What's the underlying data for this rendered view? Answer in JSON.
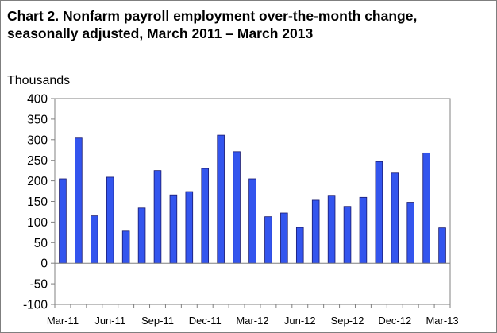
{
  "chart_data": {
    "type": "bar",
    "title": "Chart 2. Nonfarm payroll employment over-the-month change, seasonally adjusted, March 2011 – March  2013",
    "ylabel": "Thousands",
    "xlabel": "",
    "ylim": [
      -100,
      400
    ],
    "yticks": [
      400,
      350,
      300,
      250,
      200,
      150,
      100,
      50,
      0,
      -50,
      -100
    ],
    "ytick_labels": [
      "400",
      "350",
      "300",
      "250",
      "200",
      "150",
      "100",
      "50",
      "0",
      "-50",
      "-100"
    ],
    "categories": [
      "Mar-11",
      "Apr-11",
      "May-11",
      "Jun-11",
      "Jul-11",
      "Aug-11",
      "Sep-11",
      "Oct-11",
      "Nov-11",
      "Dec-11",
      "Jan-12",
      "Feb-12",
      "Mar-12",
      "Apr-12",
      "May-12",
      "Jun-12",
      "Jul-12",
      "Aug-12",
      "Sep-12",
      "Oct-12",
      "Nov-12",
      "Dec-12",
      "Jan-13",
      "Feb-13",
      "Mar-13"
    ],
    "xtick_labels": [
      "Mar-11",
      "Jun-11",
      "Sep-11",
      "Dec-11",
      "Mar-12",
      "Jun-12",
      "Sep-12",
      "Dec-12",
      "Mar-13"
    ],
    "xtick_every": 3,
    "values": [
      205,
      304,
      115,
      209,
      78,
      134,
      225,
      166,
      174,
      230,
      311,
      271,
      205,
      113,
      122,
      87,
      153,
      165,
      138,
      160,
      247,
      219,
      148,
      268,
      86
    ],
    "bar_color": "#3355ee",
    "grid": false,
    "legend": "none"
  }
}
